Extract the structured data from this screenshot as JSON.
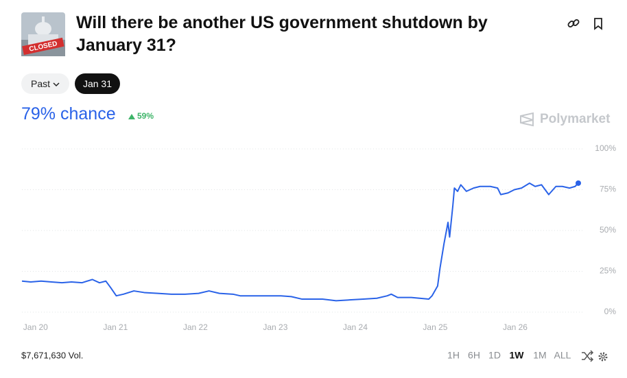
{
  "header": {
    "title": "Will there be another US government shutdown by January 31?",
    "image_label": "CLOSED"
  },
  "tabs": {
    "items": [
      "Past",
      "Jan 31"
    ],
    "selected": 1
  },
  "headline": {
    "chance": "79% chance",
    "change": "59%"
  },
  "brand": "Polymarket",
  "chart_data": {
    "type": "line",
    "color": "#2962e8",
    "x": [
      -0.17,
      -0.06,
      0.07,
      0.2,
      0.33,
      0.45,
      0.58,
      0.71,
      0.8,
      0.88,
      0.94,
      1.01,
      1.1,
      1.23,
      1.36,
      1.53,
      1.7,
      1.87,
      2.04,
      2.17,
      2.3,
      2.47,
      2.56,
      2.82,
      3.07,
      3.2,
      3.33,
      3.59,
      3.76,
      3.93,
      4.1,
      4.27,
      4.4,
      4.45,
      4.53,
      4.7,
      4.92,
      4.96,
      5.03,
      5.06,
      5.11,
      5.16,
      5.18,
      5.22,
      5.24,
      5.28,
      5.32,
      5.39,
      5.48,
      5.56,
      5.69,
      5.78,
      5.82,
      5.91,
      5.99,
      6.08,
      6.18,
      6.25,
      6.33,
      6.42,
      6.51,
      6.59,
      6.68,
      6.75,
      6.79
    ],
    "values": [
      19,
      18.5,
      19,
      18.5,
      18,
      18.5,
      18,
      20,
      18,
      19,
      15,
      10,
      11,
      13,
      12,
      11.5,
      11,
      11,
      11.5,
      13,
      11.5,
      11,
      10,
      10,
      10,
      9.5,
      8,
      8,
      7,
      7.5,
      8,
      8.5,
      10,
      11,
      9,
      9,
      8,
      10,
      16,
      27,
      42,
      55,
      46,
      65,
      76,
      74,
      78,
      74,
      76,
      77,
      77,
      76,
      72,
      73,
      75,
      76,
      79,
      77,
      78,
      72,
      77,
      77,
      76,
      77,
      79
    ],
    "xlim": [
      -0.17,
      6.85
    ],
    "xticks": [
      {
        "value": 0,
        "label": "Jan 20"
      },
      {
        "value": 1,
        "label": "Jan 21"
      },
      {
        "value": 2,
        "label": "Jan 22"
      },
      {
        "value": 3,
        "label": "Jan 23"
      },
      {
        "value": 4,
        "label": "Jan 24"
      },
      {
        "value": 5,
        "label": "Jan 25"
      },
      {
        "value": 6,
        "label": "Jan 26"
      }
    ],
    "ylim": [
      0,
      100
    ],
    "yticks": [
      {
        "value": 0,
        "label": "0%"
      },
      {
        "value": 25,
        "label": "25%"
      },
      {
        "value": 50,
        "label": "50%"
      },
      {
        "value": 75,
        "label": "75%"
      },
      {
        "value": 100,
        "label": "100%"
      }
    ],
    "grid": true
  },
  "footer": {
    "volume": "$7,671,630 Vol.",
    "ranges": [
      "1H",
      "6H",
      "1D",
      "1W",
      "1M",
      "ALL"
    ],
    "selected_range": 3
  }
}
